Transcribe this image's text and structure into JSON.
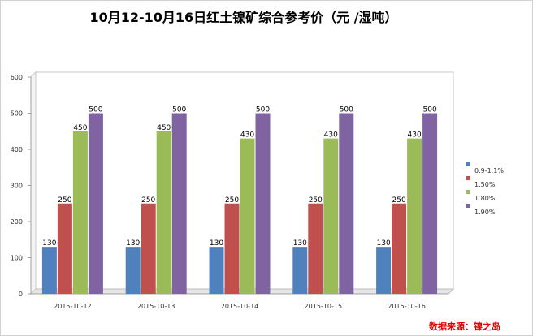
{
  "title": "10月12-10月16日红土镍矿综合参考价（元 /湿吨）",
  "source": "数据来源：镍之岛",
  "chart_data": {
    "type": "bar",
    "title": "10月12-10月16日红土镍矿综合参考价（元 /湿吨）",
    "categories": [
      "2015-10-12",
      "2015-10-13",
      "2015-10-14",
      "2015-10-15",
      "2015-10-16"
    ],
    "series": [
      {
        "name": "0.9-1.1%",
        "color": "#4f81bd",
        "values": [
          130,
          130,
          130,
          130,
          130
        ]
      },
      {
        "name": "1.50%",
        "color": "#c0504d",
        "values": [
          250,
          250,
          250,
          250,
          250
        ]
      },
      {
        "name": "1.80%",
        "color": "#9bbb59",
        "values": [
          450,
          450,
          430,
          430,
          430
        ]
      },
      {
        "name": "1.90%",
        "color": "#8064a2",
        "values": [
          500,
          500,
          500,
          500,
          500
        ]
      }
    ],
    "ylim": [
      0,
      600
    ],
    "yticks": [
      0,
      100,
      200,
      300,
      400,
      500,
      600
    ],
    "xlabel": "",
    "ylabel": "",
    "grid": false,
    "legend_position": "right",
    "data_labels": true
  }
}
